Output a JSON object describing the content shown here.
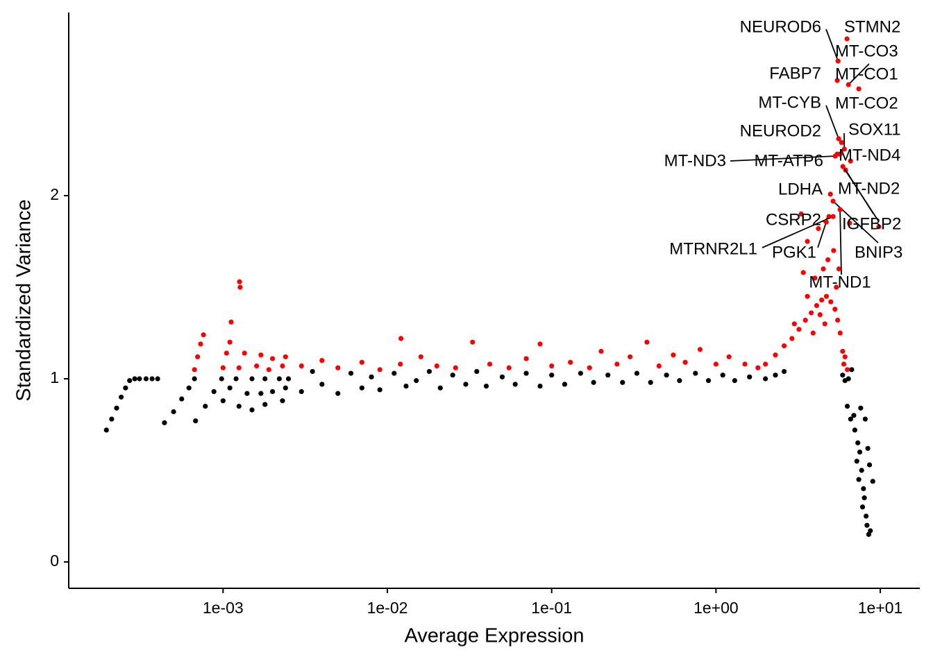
{
  "chart_data": {
    "type": "scatter",
    "x_label": "Average Expression",
    "y_label": "Standardized Variance",
    "xscale": "log",
    "xlim": [
      0.000115,
      17.4
    ],
    "ylim": [
      -0.144,
      3.0
    ],
    "xticks": [
      {
        "value": 0.001,
        "label": "1e-03"
      },
      {
        "value": 0.01,
        "label": "1e-02"
      },
      {
        "value": 0.1,
        "label": "1e-01"
      },
      {
        "value": 1,
        "label": "1e+00"
      },
      {
        "value": 10,
        "label": "1e+01"
      }
    ],
    "yticks": [
      0,
      1,
      2
    ],
    "series": [
      {
        "color": "#000000",
        "x": [
          0.000195,
          0.00021,
          0.000225,
          0.00024,
          0.000255,
          0.00027,
          0.00029,
          0.00031,
          0.00034,
          0.00037,
          0.0004,
          0.00044,
          0.0005,
          0.00056,
          0.00062,
          0.00067,
          0.00068,
          0.00078,
          0.00088,
          0.00098,
          0.001,
          0.0011,
          0.0012,
          0.00125,
          0.0014,
          0.0015,
          0.0015,
          0.0017,
          0.0018,
          0.0018,
          0.002,
          0.0022,
          0.0023,
          0.0024,
          0.0025,
          0.003,
          0.0035,
          0.004,
          0.005,
          0.006,
          0.007,
          0.008,
          0.009,
          0.011,
          0.013,
          0.015,
          0.018,
          0.021,
          0.025,
          0.03,
          0.035,
          0.04,
          0.05,
          0.06,
          0.07,
          0.085,
          0.1,
          0.12,
          0.15,
          0.18,
          0.22,
          0.27,
          0.33,
          0.4,
          0.5,
          0.6,
          0.75,
          0.9,
          1.1,
          1.3,
          1.6,
          2.0,
          2.3,
          2.6,
          5.9,
          6.1,
          6.4,
          6.7,
          6.3,
          6.6,
          6.9,
          7.0,
          7.3,
          7.5,
          7.2,
          7.7,
          7.4,
          7.9,
          8.0,
          7.8,
          8.2,
          8.3,
          8.5,
          8.7,
          7.6,
          8.1,
          8.6,
          9.0,
          8.4
        ],
        "values": [
          0.72,
          0.78,
          0.84,
          0.9,
          0.95,
          0.99,
          1,
          1,
          1,
          1,
          1,
          0.76,
          0.82,
          0.89,
          0.95,
          1,
          0.77,
          0.85,
          0.93,
          1,
          0.88,
          0.95,
          1,
          0.85,
          0.92,
          1,
          0.83,
          0.92,
          1,
          0.86,
          0.93,
          1,
          0.88,
          0.95,
          1,
          0.93,
          1.04,
          0.97,
          0.92,
          1.03,
          0.95,
          1.01,
          0.94,
          1.03,
          0.96,
          0.99,
          1.04,
          0.95,
          1.02,
          0.97,
          1.04,
          0.96,
          1.01,
          0.97,
          1.03,
          0.96,
          1.02,
          0.97,
          1.03,
          0.98,
          1.02,
          0.98,
          1.03,
          0.98,
          1.02,
          0.99,
          1.03,
          0.99,
          1.02,
          0.99,
          1.01,
          1,
          1.02,
          1.04,
          1.02,
          0.99,
          1,
          1.05,
          0.85,
          0.78,
          0.8,
          0.72,
          0.65,
          0.6,
          0.55,
          0.5,
          0.45,
          0.4,
          0.35,
          0.3,
          0.25,
          0.2,
          0.15,
          0.17,
          0.84,
          0.78,
          0.53,
          0.44,
          0.62
        ]
      },
      {
        "color": "#ff0000",
        "x": [
          0.00067,
          0.0007,
          0.00073,
          0.00076,
          0.001,
          0.00105,
          0.0011,
          0.00112,
          0.00125,
          0.00135,
          0.00126,
          0.00127,
          0.0016,
          0.0017,
          0.0019,
          0.002,
          0.0023,
          0.0024,
          0.003,
          0.004,
          0.005,
          0.007,
          0.009,
          0.012,
          0.016,
          0.02,
          0.026,
          0.033,
          0.042,
          0.055,
          0.07,
          0.085,
          0.1,
          0.13,
          0.17,
          0.2,
          0.25,
          0.3,
          0.38,
          0.45,
          0.55,
          0.65,
          0.8,
          1.0,
          1.2,
          1.5,
          1.8,
          0.0121,
          2.0,
          2.3,
          2.6,
          2.9,
          3.2,
          3.5,
          3.8,
          4.1,
          4.4,
          4.7,
          5.0,
          5.3,
          5.5,
          5.7,
          5.9,
          6.0,
          3.0,
          3.6,
          4.0,
          4.5,
          4.8,
          5.2,
          3.4,
          4.3,
          3.9,
          4.6,
          5.4,
          5.6,
          6.1,
          6.3,
          3.3,
          3.6,
          9.8,
          6.5,
          4.2
        ],
        "values": [
          1.05,
          1.12,
          1.19,
          1.24,
          1.06,
          1.14,
          1.2,
          1.31,
          1.06,
          1.14,
          1.53,
          1.5,
          1.07,
          1.13,
          1.05,
          1.11,
          1.07,
          1.12,
          1.07,
          1.1,
          1.06,
          1.09,
          1.05,
          1.08,
          1.12,
          1.07,
          1.06,
          1.2,
          1.08,
          1.06,
          1.11,
          1.19,
          1.07,
          1.09,
          1.06,
          1.15,
          1.08,
          1.12,
          1.2,
          1.07,
          1.13,
          1.09,
          1.16,
          1.08,
          1.12,
          1.08,
          1.06,
          1.22,
          1.08,
          1.13,
          1.18,
          1.22,
          1.27,
          1.32,
          1.36,
          1.4,
          1.43,
          1.45,
          1.42,
          1.38,
          1.32,
          1.25,
          1.15,
          1.08,
          1.3,
          1.45,
          1.55,
          1.6,
          1.65,
          1.7,
          1.58,
          1.35,
          1.25,
          1.3,
          1.5,
          1.6,
          1.12,
          1.05,
          1.9,
          1.75,
          1.83,
          1.85,
          1.82
        ]
      }
    ],
    "labels": [
      {
        "text": "STMN2",
        "x": 6.27,
        "y": 2.856
      },
      {
        "text": "NEUROD6",
        "x": 5.53,
        "y": 2.735
      },
      {
        "text": "MT-CO3",
        "x": 6.4,
        "y": 2.606
      },
      {
        "text": "FABP7",
        "x": 5.47,
        "y": 2.629
      },
      {
        "text": "MT-CO1",
        "x": 7.4,
        "y": 2.583
      },
      {
        "text": "MT-CYB",
        "x": 5.58,
        "y": 2.311
      },
      {
        "text": "MT-CO2",
        "x": 5.81,
        "y": 2.29
      },
      {
        "text": "SOX11",
        "x": 6.04,
        "y": 2.254
      },
      {
        "text": "NEUROD2",
        "x": 5.47,
        "y": 2.227
      },
      {
        "text": "MT-ND4",
        "x": 6.59,
        "y": 2.189
      },
      {
        "text": "MT-ND3",
        "x": 5.32,
        "y": 2.216
      },
      {
        "text": "MT-ATP6",
        "x": 5.69,
        "y": 2.227
      },
      {
        "text": "MT-ND2",
        "x": 6.15,
        "y": 2.14
      },
      {
        "text": "LDHA",
        "x": 4.97,
        "y": 2.008
      },
      {
        "text": "IGFBP2",
        "x": 5.92,
        "y": 2.159
      },
      {
        "text": "CSRP2",
        "x": 4.87,
        "y": 1.886
      },
      {
        "text": "BNIP3",
        "x": 5.16,
        "y": 1.97
      },
      {
        "text": "MTRNR2L1",
        "x": 5.16,
        "y": 1.886
      },
      {
        "text": "PGK1",
        "x": 4.69,
        "y": 1.856
      },
      {
        "text": "MT-ND1",
        "x": 5.69,
        "y": 1.924
      }
    ]
  }
}
